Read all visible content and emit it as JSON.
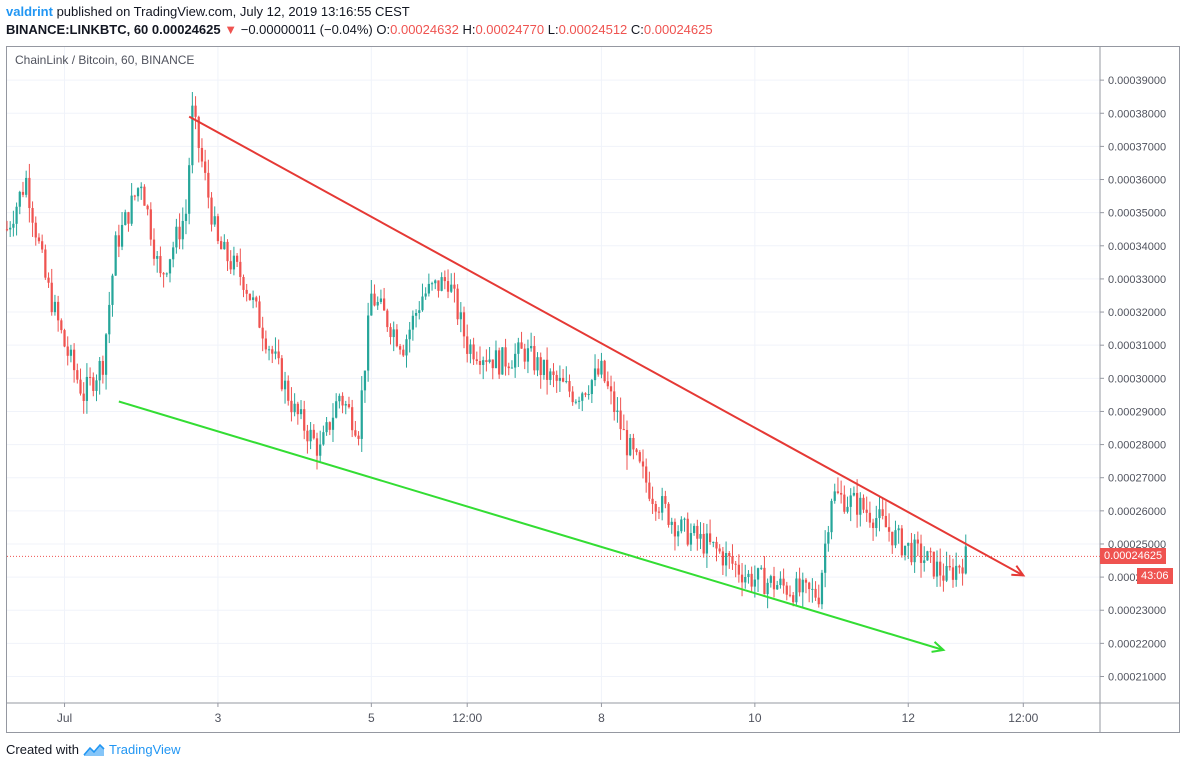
{
  "header": {
    "author": "valdrint",
    "published_text": " published on TradingView.com, July 12, 2019 13:16:55 CEST",
    "symbol": "BINANCE:LINKBTC, 60",
    "last": "0.00024625",
    "down_arrow": "▼",
    "change": "−0.00000011 (−0.04%)",
    "o_label": "O:",
    "o_value": "0.00024632",
    "h_label": "H:",
    "h_value": "0.00024770",
    "l_label": "L:",
    "l_value": "0.00024512",
    "c_label": "C:",
    "c_value": "0.00024625"
  },
  "legend": "ChainLink / Bitcoin, 60, BINANCE",
  "footer": {
    "created": "Created with",
    "brand": "TradingView",
    "logo_icon": "tradingview-logo-icon"
  },
  "price_tag": {
    "value": "0.00024625",
    "countdown": "43:06"
  },
  "colors": {
    "up": "#26a69a",
    "down": "#ef5350",
    "resistance": "#e53935",
    "support": "#33dd33",
    "grid": "#f0f3fa"
  },
  "chart_data": {
    "type": "candlestick",
    "title": "ChainLink / Bitcoin, 60, BINANCE",
    "ylim": [
      0.000202,
      0.0004
    ],
    "y_ticks": [
      "0.00021000",
      "0.00022000",
      "0.00023000",
      "0.00024000",
      "0.00025000",
      "0.00026000",
      "0.00027000",
      "0.00028000",
      "0.00029000",
      "0.00030000",
      "0.00031000",
      "0.00032000",
      "0.00033000",
      "0.00034000",
      "0.00035000",
      "0.00036000",
      "0.00037000",
      "0.00038000",
      "0.00039000"
    ],
    "y_tick_values": [
      0.00021,
      0.00022,
      0.00023,
      0.00024,
      0.00025,
      0.00026,
      0.00027,
      0.00028,
      0.00029,
      0.0003,
      0.00031,
      0.00032,
      0.00033,
      0.00034,
      0.00035,
      0.00036,
      0.00037,
      0.00038,
      0.00039
    ],
    "x_ticks": [
      "Jul",
      "3",
      "5",
      "12:00",
      "8",
      "10",
      "12",
      "12:00"
    ],
    "x_tick_hours": [
      18,
      66,
      114,
      144,
      186,
      234,
      282,
      318
    ],
    "x_range_hours": [
      0,
      342
    ],
    "current_price": 0.00024625,
    "price_path": [
      [
        0,
        0.000345
      ],
      [
        6,
        0.00036
      ],
      [
        12,
        0.00033
      ],
      [
        18,
        0.00031
      ],
      [
        24,
        0.000295
      ],
      [
        30,
        0.000305
      ],
      [
        34,
        0.00034
      ],
      [
        42,
        0.00036
      ],
      [
        48,
        0.00033
      ],
      [
        56,
        0.00035
      ],
      [
        58,
        0.00038
      ],
      [
        62,
        0.00036
      ],
      [
        66,
        0.00034
      ],
      [
        74,
        0.00033
      ],
      [
        82,
        0.00031
      ],
      [
        90,
        0.00029
      ],
      [
        98,
        0.000278
      ],
      [
        104,
        0.000295
      ],
      [
        110,
        0.000285
      ],
      [
        114,
        0.000325
      ],
      [
        124,
        0.00031
      ],
      [
        130,
        0.000325
      ],
      [
        138,
        0.00033
      ],
      [
        144,
        0.00031
      ],
      [
        154,
        0.000305
      ],
      [
        162,
        0.000308
      ],
      [
        170,
        0.0003
      ],
      [
        178,
        0.000295
      ],
      [
        186,
        0.000302
      ],
      [
        194,
        0.00028
      ],
      [
        202,
        0.000265
      ],
      [
        210,
        0.000255
      ],
      [
        222,
        0.000248
      ],
      [
        232,
        0.00024
      ],
      [
        240,
        0.000238
      ],
      [
        250,
        0.000235
      ],
      [
        254,
        0.000235
      ],
      [
        258,
        0.000265
      ],
      [
        266,
        0.000262
      ],
      [
        272,
        0.000258
      ],
      [
        280,
        0.00025
      ],
      [
        288,
        0.000245
      ],
      [
        294,
        0.00024
      ],
      [
        300,
        0.000246
      ]
    ],
    "trendlines": [
      {
        "name": "resistance",
        "color": "#e53935",
        "points": [
          [
            57,
            0.000379
          ],
          [
            318,
            0.0002405
          ]
        ]
      },
      {
        "name": "support",
        "color": "#33dd33",
        "points": [
          [
            35,
            0.000293
          ],
          [
            293,
            0.000218
          ]
        ]
      }
    ]
  }
}
